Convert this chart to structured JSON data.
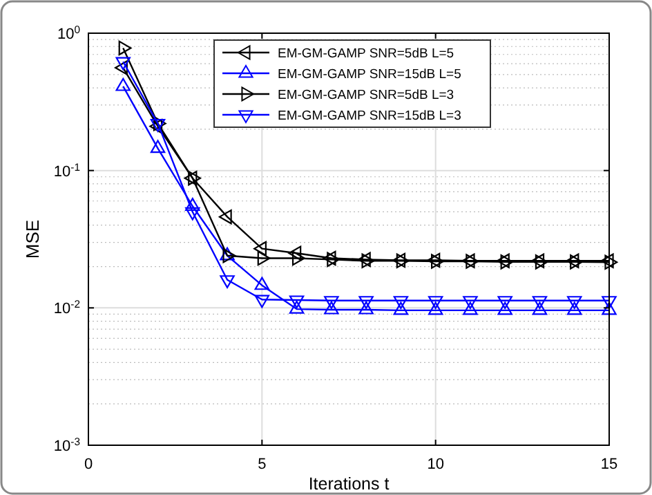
{
  "chart_data": {
    "type": "line",
    "xlabel": "Iterations t",
    "ylabel": "MSE",
    "log": "y",
    "grid": true,
    "legend": "top",
    "marker": "triangle",
    "line_style": "solid",
    "x": [
      1,
      2,
      3,
      4,
      5,
      6,
      7,
      8,
      9,
      10,
      11,
      12,
      13,
      14,
      15
    ],
    "xlim": [
      0,
      15
    ],
    "xticks": [
      0,
      5,
      10,
      15
    ],
    "ylim": [
      0.001,
      1
    ],
    "yticks": [
      {
        "value": 0.001,
        "label": "10$^{-3}$"
      },
      {
        "value": 0.01,
        "label": "10$^{-2}$"
      },
      {
        "value": 0.1,
        "label": "10$^{-1}$"
      },
      {
        "value": 1,
        "label": "10$^{0}$"
      }
    ],
    "series": [
      {
        "name": "EM-GM-GAMP SNR=5dB L=5",
        "color": "#000000",
        "values": [
          0.56,
          0.21,
          0.088,
          0.046,
          0.027,
          0.025,
          0.023,
          0.0225,
          0.0222,
          0.0222,
          0.022,
          0.022,
          0.022,
          0.022,
          0.022
        ]
      },
      {
        "name": "EM-GM-GAMP SNR=15dB L=5",
        "color": "#0000ff",
        "values": [
          0.41,
          0.145,
          0.055,
          0.024,
          0.0146,
          0.0098,
          0.0097,
          0.0097,
          0.0096,
          0.0096,
          0.0096,
          0.0096,
          0.0096,
          0.0096,
          0.0096
        ]
      },
      {
        "name": "EM-GM-GAMP SNR=5dB L=3",
        "color": "#000000",
        "values": [
          0.78,
          0.22,
          0.088,
          0.024,
          0.023,
          0.023,
          0.0225,
          0.022,
          0.022,
          0.0218,
          0.0218,
          0.0216,
          0.0216,
          0.0216,
          0.0215
        ]
      },
      {
        "name": "EM-GM-GAMP SNR=15dB L=3",
        "color": "#0000ff",
        "values": [
          0.62,
          0.22,
          0.05,
          0.016,
          0.0115,
          0.0114,
          0.0113,
          0.0113,
          0.0113,
          0.0113,
          0.0113,
          0.0113,
          0.0113,
          0.0113,
          0.0113
        ]
      }
    ]
  }
}
